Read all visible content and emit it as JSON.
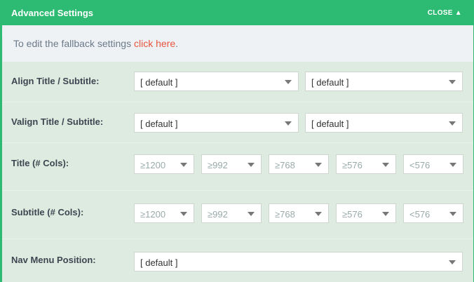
{
  "header": {
    "title": "Advanced Settings",
    "close_label": "CLOSE ▲"
  },
  "info": {
    "text": "To edit the fallback settings ",
    "link": "click here",
    "suffix": "."
  },
  "rows": [
    {
      "label": "Align Title / Subtitle:",
      "selects": [
        "[ default ]",
        "[ default ]"
      ]
    },
    {
      "label": "Valign Title / Subtitle:",
      "selects": [
        "[ default ]",
        "[ default ]"
      ]
    },
    {
      "label": "Title (# Cols):",
      "selects": [
        "≥1200",
        "≥992",
        "≥768",
        "≥576",
        "<576"
      ]
    },
    {
      "label": "Subtitle (# Cols):",
      "selects": [
        "≥1200",
        "≥992",
        "≥768",
        "≥576",
        "<576"
      ]
    },
    {
      "label": "Nav Menu Position:",
      "selects": [
        "[ default ]"
      ]
    }
  ],
  "colors": {
    "accent": "#2dba72",
    "link": "#e8553e"
  }
}
